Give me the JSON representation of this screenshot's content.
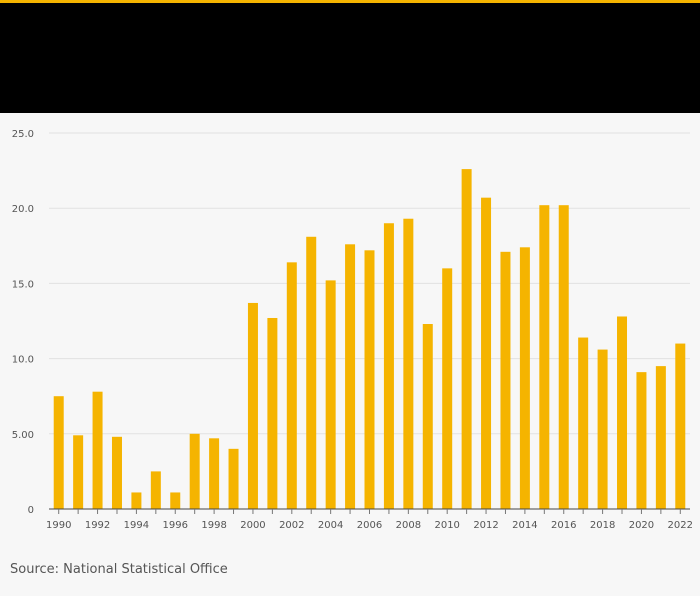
{
  "colors": {
    "bar": "#f5b400",
    "header_bg": "#000000",
    "accent": "#f5b400",
    "grid": "#e2e2e2"
  },
  "source": "Source: National Statistical Office",
  "chart_data": {
    "type": "bar",
    "title": "",
    "xlabel": "",
    "ylabel": "",
    "categories": [
      "1990",
      "1991",
      "1992",
      "1993",
      "1994",
      "1995",
      "1996",
      "1997",
      "1998",
      "1999",
      "2000",
      "2001",
      "2002",
      "2003",
      "2004",
      "2005",
      "2006",
      "2007",
      "2008",
      "2009",
      "2010",
      "2011",
      "2012",
      "2013",
      "2014",
      "2015",
      "2016",
      "2017",
      "2018",
      "2019",
      "2020",
      "2021",
      "2022"
    ],
    "values": [
      7.5,
      4.9,
      7.8,
      4.8,
      1.1,
      2.5,
      1.1,
      5.0,
      4.7,
      4.0,
      13.7,
      12.7,
      16.4,
      18.1,
      15.2,
      17.6,
      17.2,
      19.0,
      19.3,
      12.3,
      16.0,
      22.6,
      20.7,
      17.1,
      17.4,
      20.2,
      20.2,
      11.4,
      10.6,
      12.8,
      9.1,
      9.5,
      11.0
    ],
    "x_tick_labels": [
      "1990",
      "1992",
      "1994",
      "1996",
      "1998",
      "2000",
      "2002",
      "2004",
      "2006",
      "2008",
      "2010",
      "2012",
      "2014",
      "2016",
      "2018",
      "2020",
      "2022"
    ],
    "y_ticks": [
      0,
      5,
      10,
      15,
      20,
      25
    ],
    "y_tick_labels": [
      "0",
      "5.00",
      "10.0",
      "15.0",
      "20.0",
      "25.0"
    ],
    "ylim": [
      0,
      25
    ],
    "grid": true,
    "legend": false
  }
}
